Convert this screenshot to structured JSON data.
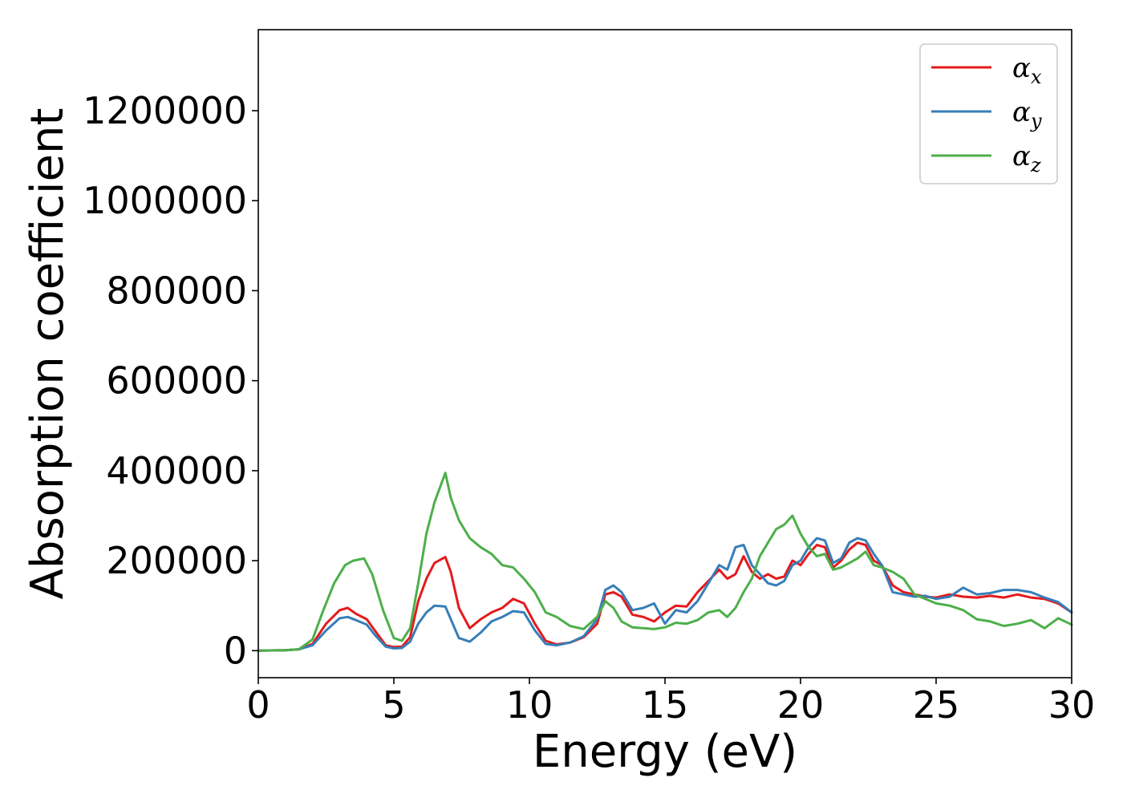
{
  "chart_data": {
    "type": "line",
    "title": "",
    "xlabel": "Energy (eV)",
    "ylabel": "Absorption coefficient",
    "xlim": [
      0,
      30
    ],
    "ylim": [
      -60000,
      1380000
    ],
    "xticks": [
      0,
      5,
      10,
      15,
      20,
      25,
      30
    ],
    "yticks": [
      0,
      200000,
      400000,
      600000,
      800000,
      1000000,
      1200000
    ],
    "xtick_labels": [
      "0",
      "5",
      "10",
      "15",
      "20",
      "25",
      "30"
    ],
    "ytick_labels": [
      "0",
      "200000",
      "400000",
      "600000",
      "800000",
      "1000000",
      "1200000"
    ],
    "grid": false,
    "legend_position": "top-right",
    "series": [
      {
        "name": "αx",
        "legend_symbol": "α",
        "legend_subscript": "x",
        "color": "#e41a1c",
        "x": [
          0,
          1,
          1.5,
          2,
          2.5,
          3,
          3.3,
          3.6,
          4,
          4.3,
          4.7,
          5,
          5.3,
          5.6,
          5.9,
          6.2,
          6.5,
          6.9,
          7.1,
          7.4,
          7.8,
          8.2,
          8.6,
          9,
          9.4,
          9.8,
          10.2,
          10.6,
          11,
          11.5,
          12,
          12.5,
          12.8,
          13.1,
          13.4,
          13.8,
          14.2,
          14.6,
          15,
          15.4,
          15.8,
          16.2,
          16.6,
          17,
          17.3,
          17.6,
          17.9,
          18.2,
          18.5,
          18.8,
          19.1,
          19.4,
          19.7,
          20,
          20.3,
          20.6,
          20.9,
          21.2,
          21.5,
          21.8,
          22.1,
          22.4,
          22.7,
          23,
          23.4,
          23.8,
          24.2,
          24.6,
          25,
          25.5,
          26,
          26.5,
          27,
          27.5,
          28,
          28.5,
          29,
          29.5,
          30
        ],
        "y": [
          0,
          1000,
          3000,
          15000,
          60000,
          90000,
          95000,
          82000,
          70000,
          45000,
          12000,
          8000,
          9000,
          30000,
          110000,
          160000,
          195000,
          208000,
          175000,
          95000,
          50000,
          70000,
          85000,
          95000,
          115000,
          105000,
          60000,
          22000,
          14000,
          18000,
          30000,
          60000,
          125000,
          130000,
          120000,
          80000,
          75000,
          65000,
          85000,
          100000,
          98000,
          130000,
          155000,
          180000,
          160000,
          170000,
          210000,
          175000,
          160000,
          170000,
          160000,
          165000,
          200000,
          190000,
          215000,
          235000,
          230000,
          185000,
          200000,
          225000,
          240000,
          235000,
          200000,
          190000,
          145000,
          130000,
          125000,
          120000,
          118000,
          125000,
          120000,
          118000,
          122000,
          118000,
          125000,
          118000,
          115000,
          105000,
          85000
        ]
      },
      {
        "name": "αy",
        "legend_symbol": "α",
        "legend_subscript": "y",
        "color": "#377eb8",
        "x": [
          0,
          1,
          1.5,
          2,
          2.5,
          3,
          3.3,
          3.6,
          4,
          4.3,
          4.7,
          5,
          5.3,
          5.6,
          5.9,
          6.2,
          6.5,
          6.9,
          7.1,
          7.4,
          7.8,
          8.2,
          8.6,
          9,
          9.4,
          9.8,
          10.2,
          10.6,
          11,
          11.5,
          12,
          12.5,
          12.8,
          13.1,
          13.4,
          13.8,
          14.2,
          14.6,
          15,
          15.4,
          15.8,
          16.2,
          16.6,
          17,
          17.3,
          17.6,
          17.9,
          18.2,
          18.5,
          18.8,
          19.1,
          19.4,
          19.7,
          20,
          20.3,
          20.6,
          20.9,
          21.2,
          21.5,
          21.8,
          22.1,
          22.4,
          22.7,
          23,
          23.4,
          23.8,
          24.2,
          24.6,
          25,
          25.5,
          26,
          26.5,
          27,
          27.5,
          28,
          28.5,
          29,
          29.5,
          30
        ],
        "y": [
          0,
          1000,
          3000,
          12000,
          45000,
          72000,
          75000,
          68000,
          58000,
          35000,
          9000,
          5000,
          6000,
          20000,
          60000,
          85000,
          100000,
          98000,
          70000,
          28000,
          20000,
          40000,
          65000,
          75000,
          88000,
          85000,
          45000,
          15000,
          12000,
          18000,
          32000,
          70000,
          135000,
          145000,
          130000,
          90000,
          95000,
          105000,
          60000,
          90000,
          85000,
          110000,
          150000,
          190000,
          180000,
          230000,
          235000,
          190000,
          170000,
          150000,
          145000,
          155000,
          190000,
          200000,
          230000,
          250000,
          245000,
          195000,
          205000,
          240000,
          250000,
          245000,
          215000,
          190000,
          130000,
          125000,
          120000,
          122000,
          115000,
          120000,
          140000,
          125000,
          128000,
          135000,
          135000,
          130000,
          118000,
          108000,
          85000
        ]
      },
      {
        "name": "αz",
        "legend_symbol": "α",
        "legend_subscript": "z",
        "color": "#4daf4a",
        "x": [
          0,
          1,
          1.5,
          2,
          2.4,
          2.8,
          3.2,
          3.5,
          3.9,
          4.2,
          4.6,
          5,
          5.3,
          5.6,
          5.9,
          6.2,
          6.5,
          6.9,
          7.1,
          7.4,
          7.8,
          8.2,
          8.6,
          9,
          9.4,
          9.8,
          10.2,
          10.6,
          11,
          11.5,
          12,
          12.5,
          12.8,
          13.1,
          13.4,
          13.8,
          14.2,
          14.6,
          15,
          15.4,
          15.8,
          16.2,
          16.6,
          17,
          17.3,
          17.6,
          17.9,
          18.2,
          18.5,
          18.8,
          19.1,
          19.4,
          19.7,
          20,
          20.3,
          20.6,
          20.9,
          21.2,
          21.5,
          21.8,
          22.1,
          22.4,
          22.7,
          23,
          23.4,
          23.8,
          24.2,
          24.6,
          25,
          25.5,
          26,
          26.5,
          27,
          27.5,
          28,
          28.5,
          29,
          29.5,
          30
        ],
        "y": [
          0,
          1000,
          3000,
          25000,
          90000,
          150000,
          190000,
          200000,
          205000,
          170000,
          90000,
          28000,
          22000,
          50000,
          150000,
          260000,
          330000,
          395000,
          340000,
          290000,
          250000,
          230000,
          215000,
          190000,
          185000,
          160000,
          130000,
          85000,
          75000,
          55000,
          48000,
          75000,
          110000,
          95000,
          65000,
          52000,
          50000,
          48000,
          52000,
          62000,
          60000,
          68000,
          85000,
          90000,
          75000,
          95000,
          130000,
          160000,
          210000,
          240000,
          270000,
          280000,
          300000,
          260000,
          230000,
          210000,
          215000,
          180000,
          185000,
          195000,
          205000,
          220000,
          190000,
          185000,
          175000,
          160000,
          125000,
          115000,
          105000,
          100000,
          90000,
          70000,
          65000,
          55000,
          60000,
          68000,
          50000,
          72000,
          58000
        ]
      }
    ]
  }
}
